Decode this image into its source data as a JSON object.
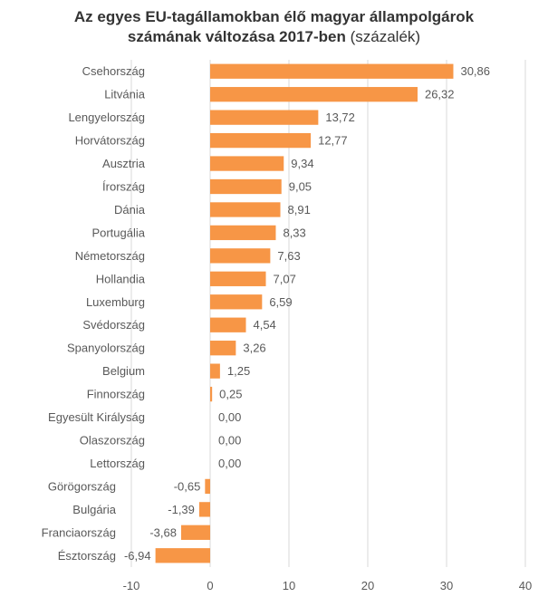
{
  "chart_data": {
    "type": "bar",
    "orientation": "horizontal",
    "title_line1": "Az egyes EU-tagállamokban élő magyar állampolgárok",
    "title_line2_bold": "számának változása 2017-ben",
    "title_line2_normal": "(százalék)",
    "categories": [
      "Csehország",
      "Litvánia",
      "Lengyelország",
      "Horvátország",
      "Ausztria",
      "Írország",
      "Dánia",
      "Portugália",
      "Németország",
      "Hollandia",
      "Luxemburg",
      "Svédország",
      "Spanyolország",
      "Belgium",
      "Finnország",
      "Egyesült Királyság",
      "Olaszország",
      "Lettország",
      "Görögország",
      "Bulgária",
      "Franciaország",
      "Észtország"
    ],
    "values": [
      30.86,
      26.32,
      13.72,
      12.77,
      9.34,
      9.05,
      8.91,
      8.33,
      7.63,
      7.07,
      6.59,
      4.54,
      3.26,
      1.25,
      0.25,
      0.0,
      0.0,
      0.0,
      -0.65,
      -1.39,
      -3.68,
      -6.94
    ],
    "value_labels": [
      "30,86",
      "26,32",
      "13,72",
      "12,77",
      "9,34",
      "9,05",
      "8,91",
      "8,33",
      "7,63",
      "7,07",
      "6,59",
      "4,54",
      "3,26",
      "1,25",
      "0,25",
      "0,00",
      "0,00",
      "0,00",
      "-0,65",
      "-1,39",
      "-3,68",
      "-6,94"
    ],
    "xticks": [
      -10,
      0,
      10,
      20,
      30,
      40
    ],
    "xtick_labels": [
      "-10",
      "0",
      "10",
      "20",
      "30",
      "40"
    ],
    "xlim": [
      -10,
      40
    ],
    "bar_color": "#F79646",
    "grid_color": "#D9D9D9"
  }
}
